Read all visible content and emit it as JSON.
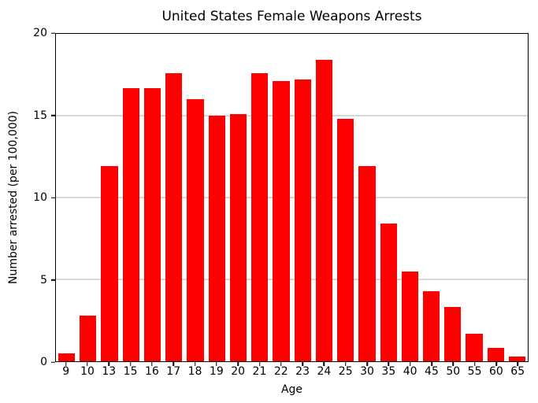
{
  "chart_data": {
    "type": "bar",
    "title": "United States Female Weapons Arrests",
    "xlabel": "Age",
    "ylabel": "Number arrested (per 100,000)",
    "categories": [
      "9",
      "10",
      "13",
      "15",
      "16",
      "17",
      "18",
      "19",
      "20",
      "21",
      "22",
      "23",
      "24",
      "25",
      "30",
      "35",
      "40",
      "45",
      "50",
      "55",
      "60",
      "65"
    ],
    "values": [
      0.5,
      2.8,
      11.9,
      16.7,
      16.7,
      17.6,
      16.0,
      15.0,
      15.1,
      17.6,
      17.1,
      17.2,
      18.4,
      14.8,
      11.9,
      8.4,
      5.5,
      4.3,
      3.3,
      1.7,
      0.8,
      0.3
    ],
    "ylim": [
      0,
      20
    ],
    "yticks": [
      0,
      5,
      10,
      15,
      20
    ],
    "bar_color": "#ff0000",
    "grid": true,
    "grid_color": "#b0b0b0",
    "legend": "none",
    "background": "#ffffff"
  }
}
